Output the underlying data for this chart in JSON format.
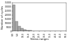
{
  "title": "",
  "xlabel": "Stress ranges",
  "ylabel": "Number of cycles",
  "bar_color": "#aaaaaa",
  "bar_edge_color": "#555555",
  "background_color": "#ffffff",
  "xlim": [
    0,
    500
  ],
  "ylim": [
    0,
    35000
  ],
  "bin_edges": [
    0,
    25,
    50,
    75,
    100,
    125,
    150,
    175,
    200,
    225,
    250,
    275,
    300,
    325,
    350,
    375,
    400,
    425,
    450,
    475,
    500
  ],
  "bin_counts": [
    32000,
    12000,
    6000,
    3500,
    2200,
    1500,
    900,
    600,
    450,
    350,
    280,
    220,
    170,
    130,
    100,
    80,
    60,
    45,
    35,
    25
  ],
  "xtick_values": [
    0,
    50,
    100,
    150,
    200,
    250,
    300,
    350,
    400,
    450,
    500
  ],
  "xtick_labels": [
    "0.0",
    "5.0",
    "10.0",
    "15.0",
    "20.0",
    "25.0",
    "30.0",
    "35.0",
    "40.0",
    "45.0",
    "50.0"
  ],
  "ytick_values": [
    0,
    5000,
    10000,
    15000,
    20000,
    25000,
    30000,
    35000
  ],
  "ytick_labels": [
    "0",
    "5000",
    "10000",
    "15000",
    "20000",
    "25000",
    "30000",
    "35000"
  ],
  "axis_fontsize": 2.8,
  "tick_fontsize": 2.2,
  "linewidth": 0.25
}
